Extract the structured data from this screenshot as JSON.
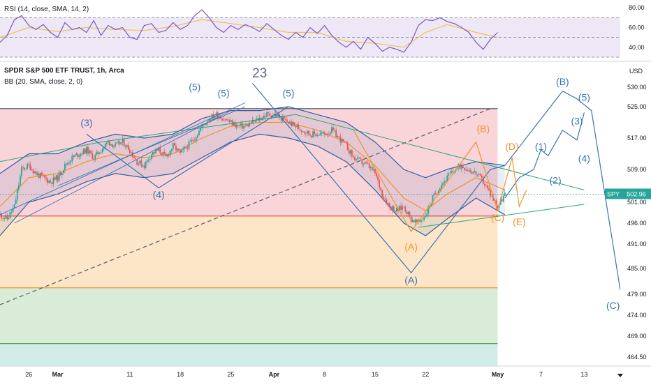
{
  "header": {
    "symbol_line": "SPDR S&P 500 ETF TRUST, 1h, Arca",
    "bb_line": "BB (20, SMA, close, 2, 0)",
    "rsi_line": "RSI (14, close, SMA, 14, 2)"
  },
  "chart_data": [
    {
      "type": "candlestick",
      "title": "SPDR S&P 500 ETF TRUST, 1h, Arca",
      "currency": "USD",
      "last_price": 502.96,
      "last_price_label": "502.96",
      "ticker_label": "SPY",
      "y_ticks": [
        464.5,
        469.0,
        474.0,
        479.0,
        485.0,
        491.0,
        496.0,
        501.0,
        509.0,
        517.0,
        525.0,
        530.0
      ],
      "y_tick_labels": [
        "464.50",
        "469.00",
        "474.00",
        "479.00",
        "485.00",
        "491.00",
        "496.00",
        "501.00",
        "509.00",
        "517.00",
        "525.00",
        "530.00"
      ],
      "x_ticks": [
        "26",
        "Mar",
        "11",
        "18",
        "25",
        "Apr",
        "8",
        "15",
        "22",
        "May",
        "7",
        "13"
      ],
      "x_tick_days": [
        0,
        4,
        14,
        21,
        28,
        34,
        41,
        48,
        55,
        65,
        71,
        77
      ],
      "x_range_days": [
        -4,
        82
      ],
      "price_path": [
        [
          -4,
          498
        ],
        [
          -3,
          497
        ],
        [
          -2,
          500
        ],
        [
          -1,
          509
        ],
        [
          0,
          510
        ],
        [
          1,
          508
        ],
        [
          2,
          507
        ],
        [
          3,
          506
        ],
        [
          4,
          507
        ],
        [
          5,
          510
        ],
        [
          6,
          512
        ],
        [
          7,
          513
        ],
        [
          8,
          514
        ],
        [
          9,
          512
        ],
        [
          10,
          514
        ],
        [
          11,
          516
        ],
        [
          12,
          515
        ],
        [
          13,
          516
        ],
        [
          14,
          514
        ],
        [
          15,
          511
        ],
        [
          16,
          510
        ],
        [
          17,
          513
        ],
        [
          18,
          514
        ],
        [
          19,
          512
        ],
        [
          20,
          515
        ],
        [
          21,
          513
        ],
        [
          22,
          515
        ],
        [
          23,
          517
        ],
        [
          24,
          520
        ],
        [
          25,
          522
        ],
        [
          26,
          523
        ],
        [
          27,
          522
        ],
        [
          28,
          521
        ],
        [
          29,
          520
        ],
        [
          30,
          520
        ],
        [
          31,
          521
        ],
        [
          32,
          522
        ],
        [
          33,
          523
        ],
        [
          34,
          523
        ],
        [
          35,
          522
        ],
        [
          36,
          521
        ],
        [
          37,
          520
        ],
        [
          38,
          519
        ],
        [
          39,
          518
        ],
        [
          40,
          518
        ],
        [
          41,
          518
        ],
        [
          42,
          519
        ],
        [
          43,
          517
        ],
        [
          44,
          515
        ],
        [
          45,
          512
        ],
        [
          46,
          511
        ],
        [
          47,
          510
        ],
        [
          48,
          508
        ],
        [
          49,
          503
        ],
        [
          50,
          500
        ],
        [
          51,
          499
        ],
        [
          52,
          500
        ],
        [
          53,
          497
        ],
        [
          54,
          496
        ],
        [
          55,
          498
        ],
        [
          56,
          502
        ],
        [
          57,
          505
        ],
        [
          58,
          507
        ],
        [
          59,
          509
        ],
        [
          60,
          510
        ],
        [
          61,
          509
        ],
        [
          62,
          508
        ],
        [
          63,
          506
        ],
        [
          64,
          503
        ],
        [
          65,
          500
        ],
        [
          66,
          503
        ]
      ],
      "bb_middle": [
        [
          -4,
          500
        ],
        [
          0,
          507
        ],
        [
          4,
          508
        ],
        [
          8,
          511
        ],
        [
          12,
          513
        ],
        [
          16,
          512
        ],
        [
          20,
          513
        ],
        [
          24,
          517
        ],
        [
          28,
          520
        ],
        [
          32,
          521
        ],
        [
          36,
          521
        ],
        [
          40,
          519
        ],
        [
          44,
          516
        ],
        [
          48,
          510
        ],
        [
          52,
          502
        ],
        [
          55,
          499
        ],
        [
          58,
          503
        ],
        [
          62,
          507
        ],
        [
          66,
          504
        ]
      ],
      "bb_upper": [
        [
          -4,
          508
        ],
        [
          0,
          513
        ],
        [
          4,
          513
        ],
        [
          8,
          516
        ],
        [
          12,
          518
        ],
        [
          16,
          517
        ],
        [
          20,
          518
        ],
        [
          24,
          522
        ],
        [
          28,
          524
        ],
        [
          32,
          524
        ],
        [
          36,
          525
        ],
        [
          40,
          523
        ],
        [
          44,
          521
        ],
        [
          48,
          516
        ],
        [
          52,
          509
        ],
        [
          55,
          507
        ],
        [
          58,
          509
        ],
        [
          62,
          511
        ],
        [
          66,
          510
        ]
      ],
      "bb_lower": [
        [
          -4,
          493
        ],
        [
          0,
          501
        ],
        [
          4,
          503
        ],
        [
          8,
          506
        ],
        [
          12,
          508
        ],
        [
          16,
          507
        ],
        [
          20,
          508
        ],
        [
          24,
          512
        ],
        [
          28,
          516
        ],
        [
          32,
          518
        ],
        [
          36,
          517
        ],
        [
          40,
          515
        ],
        [
          44,
          511
        ],
        [
          48,
          504
        ],
        [
          52,
          496
        ],
        [
          55,
          493
        ],
        [
          58,
          497
        ],
        [
          62,
          502
        ],
        [
          66,
          498
        ]
      ],
      "zones": [
        {
          "from": 497.7,
          "to": 524.5,
          "color": "#f9d4d9",
          "line_color": "#4a4a55"
        },
        {
          "from": 480.5,
          "to": 497.7,
          "color": "#fde6c8",
          "line_color": "#e8473c"
        },
        {
          "from": 467.4,
          "to": 480.5,
          "color": "#d8ecd8",
          "line_color": "#f0932b"
        },
        {
          "from": 462.0,
          "to": 467.4,
          "color": "#d2ece8",
          "line_color": "#2d9c4a"
        }
      ],
      "zone_end_day": 65,
      "annotations": [
        {
          "text": "23",
          "day": 32,
          "price": 532.5,
          "color": "#5c6a7a",
          "size": 19
        },
        {
          "text": "(5)",
          "day": 23,
          "price": 529.2,
          "color": "#3874b4",
          "size": 14
        },
        {
          "text": "(5)",
          "day": 27,
          "price": 527.6,
          "color": "#3874b4",
          "size": 14
        },
        {
          "text": "(5)",
          "day": 36,
          "price": 527.6,
          "color": "#3874b4",
          "size": 14
        },
        {
          "text": "(3)",
          "day": 8,
          "price": 520.0,
          "color": "#3874b4",
          "size": 14
        },
        {
          "text": "(4)",
          "day": 18,
          "price": 502.0,
          "color": "#3874b4",
          "size": 14
        },
        {
          "text": "(A)",
          "day": 53,
          "price": 481.5,
          "color": "#3874b4",
          "size": 14
        },
        {
          "text": "(A)",
          "day": 53,
          "price": 489.5,
          "color": "#f0932b",
          "size": 14
        },
        {
          "text": "(B)",
          "day": 63,
          "price": 518.5,
          "color": "#f0932b",
          "size": 14
        },
        {
          "text": "(D)",
          "day": 67,
          "price": 514.0,
          "color": "#f0932b",
          "size": 14
        },
        {
          "text": "(C)",
          "day": 65,
          "price": 496.5,
          "color": "#f0932b",
          "size": 14
        },
        {
          "text": "(E)",
          "day": 68,
          "price": 495.5,
          "color": "#f0932b",
          "size": 14
        },
        {
          "text": "(B)",
          "day": 74,
          "price": 530.5,
          "color": "#3874b4",
          "size": 14
        },
        {
          "text": "(5)",
          "day": 77,
          "price": 526.5,
          "color": "#3874b4",
          "size": 14
        },
        {
          "text": "(3)",
          "day": 76,
          "price": 520.5,
          "color": "#3874b4",
          "size": 14
        },
        {
          "text": "(1)",
          "day": 71,
          "price": 514.0,
          "color": "#3874b4",
          "size": 14
        },
        {
          "text": "(2)",
          "day": 73,
          "price": 505.5,
          "color": "#3874b4",
          "size": 14
        },
        {
          "text": "(4)",
          "day": 77,
          "price": 511.0,
          "color": "#3874b4",
          "size": 14
        },
        {
          "text": "(C)",
          "day": 81,
          "price": 475.5,
          "color": "#3874b4",
          "size": 14
        }
      ]
    },
    {
      "type": "line",
      "title": "RSI (14, close, SMA, 14, 2)",
      "y_ticks": [
        40,
        60,
        80
      ],
      "y_tick_labels": [
        "40.00",
        "60.00",
        "80.00"
      ],
      "y_range": [
        30,
        85
      ],
      "band": [
        30,
        70
      ],
      "rsi": [
        [
          -4,
          45
        ],
        [
          -3,
          52
        ],
        [
          -2,
          68
        ],
        [
          -1,
          72
        ],
        [
          0,
          62
        ],
        [
          1,
          58
        ],
        [
          2,
          63
        ],
        [
          3,
          55
        ],
        [
          4,
          50
        ],
        [
          5,
          65
        ],
        [
          6,
          58
        ],
        [
          7,
          60
        ],
        [
          8,
          55
        ],
        [
          9,
          67
        ],
        [
          10,
          52
        ],
        [
          11,
          62
        ],
        [
          12,
          58
        ],
        [
          13,
          60
        ],
        [
          14,
          50
        ],
        [
          15,
          48
        ],
        [
          16,
          62
        ],
        [
          17,
          64
        ],
        [
          18,
          55
        ],
        [
          19,
          57
        ],
        [
          20,
          65
        ],
        [
          21,
          58
        ],
        [
          22,
          62
        ],
        [
          23,
          72
        ],
        [
          24,
          78
        ],
        [
          25,
          70
        ],
        [
          26,
          60
        ],
        [
          27,
          55
        ],
        [
          28,
          62
        ],
        [
          29,
          58
        ],
        [
          30,
          63
        ],
        [
          31,
          60
        ],
        [
          32,
          56
        ],
        [
          33,
          64
        ],
        [
          34,
          58
        ],
        [
          35,
          52
        ],
        [
          36,
          48
        ],
        [
          37,
          55
        ],
        [
          38,
          50
        ],
        [
          39,
          60
        ],
        [
          40,
          54
        ],
        [
          41,
          62
        ],
        [
          42,
          52
        ],
        [
          43,
          45
        ],
        [
          44,
          40
        ],
        [
          45,
          46
        ],
        [
          46,
          38
        ],
        [
          47,
          50
        ],
        [
          48,
          44
        ],
        [
          49,
          36
        ],
        [
          50,
          40
        ],
        [
          51,
          38
        ],
        [
          52,
          35
        ],
        [
          53,
          45
        ],
        [
          54,
          62
        ],
        [
          55,
          68
        ],
        [
          56,
          67
        ],
        [
          57,
          70
        ],
        [
          58,
          66
        ],
        [
          59,
          64
        ],
        [
          60,
          60
        ],
        [
          61,
          55
        ],
        [
          62,
          45
        ],
        [
          63,
          38
        ],
        [
          64,
          48
        ],
        [
          65,
          55
        ]
      ],
      "rsi_ma": [
        [
          -4,
          50
        ],
        [
          0,
          60
        ],
        [
          4,
          56
        ],
        [
          8,
          60
        ],
        [
          12,
          58
        ],
        [
          16,
          57
        ],
        [
          20,
          61
        ],
        [
          24,
          68
        ],
        [
          28,
          64
        ],
        [
          32,
          60
        ],
        [
          36,
          55
        ],
        [
          40,
          55
        ],
        [
          44,
          46
        ],
        [
          48,
          44
        ],
        [
          52,
          40
        ],
        [
          55,
          55
        ],
        [
          58,
          63
        ],
        [
          62,
          55
        ],
        [
          65,
          50
        ]
      ]
    }
  ],
  "colors": {
    "candle_up": "#26a69a",
    "candle_down": "#ef5350",
    "bb_band": "#2f5fa8",
    "bb_basis": "#f0932b",
    "wave_blue": "#3874b4",
    "wave_orange": "#f0932b",
    "trend_green": "#2aa57a",
    "rsi_line": "#7e57c2",
    "rsi_ma": "#f2c14e",
    "rsi_fill": "#ede7f6",
    "price_tag": "#26a69a"
  }
}
